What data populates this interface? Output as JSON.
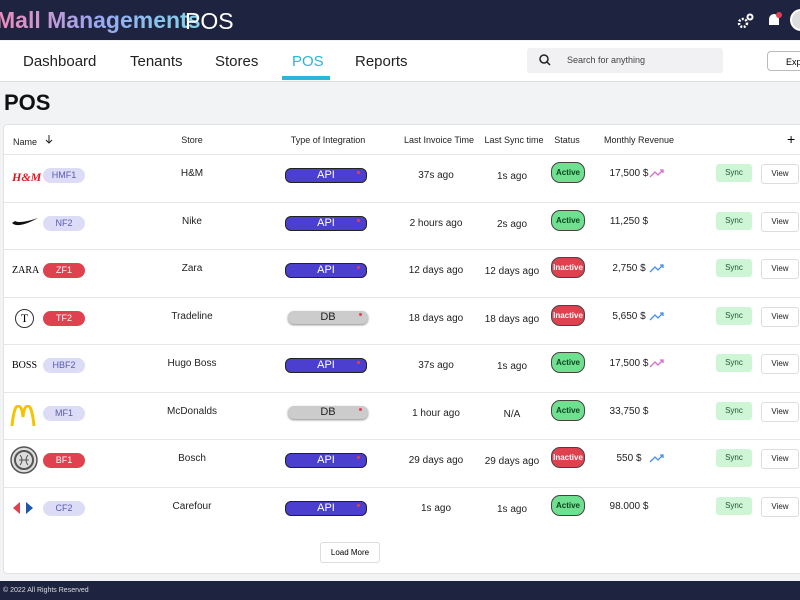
{
  "header": {
    "brand": "Mall Managements",
    "section": "POS"
  },
  "nav": {
    "tabs": [
      "Dashboard",
      "Tenants",
      "Stores",
      "POS",
      "Reports"
    ],
    "active": 3,
    "search_placeholder": "Search for anything",
    "export": "Exp"
  },
  "page_title": "POS",
  "table": {
    "columns": [
      "Name",
      "Store",
      "Type of Integration",
      "Last Invoice Time",
      "Last Sync time",
      "Status",
      "Monthly Revenue"
    ],
    "add": "+",
    "sync": "Sync",
    "view": "View",
    "rows": [
      {
        "logo": "H&M",
        "code": "HMF1",
        "store": "H&M",
        "integration": "API",
        "last_invoice": "37s ago",
        "last_sync": "1s ago",
        "status": "Active",
        "active": true,
        "revenue": "17,500 $",
        "trend_color": "#d66bd0"
      },
      {
        "code": "NF2",
        "store": "Nike",
        "integration": "API",
        "last_invoice": "2 hours ago",
        "last_sync": "2s ago",
        "status": "Active",
        "active": true,
        "revenue": "11,250 $"
      },
      {
        "logo": "ZARA",
        "code": "ZF1",
        "store": "Zara",
        "integration": "API",
        "last_invoice": "12 days ago",
        "last_sync": "12 days ago",
        "status": "Inactive",
        "active": false,
        "revenue": "2,750 $",
        "trend_color": "#4a8fe0"
      },
      {
        "logo": "T",
        "code": "TF2",
        "store": "Tradeline",
        "integration": "DB",
        "last_invoice": "18 days ago",
        "last_sync": "18 days ago",
        "status": "Inactive",
        "active": false,
        "revenue": "5,650 $",
        "trend_color": "#4a8fe0"
      },
      {
        "logo": "BOSS",
        "code": "HBF2",
        "store": "Hugo Boss",
        "integration": "API",
        "last_invoice": "37s ago",
        "last_sync": "1s ago",
        "status": "Active",
        "active": true,
        "revenue": "17,500 $",
        "trend_color": "#d66bd0"
      },
      {
        "code": "MF1",
        "store": "McDonalds",
        "integration": "DB",
        "last_invoice": "1 hour ago",
        "last_sync": "N/A",
        "status": "Active",
        "active": true,
        "revenue": "33,750 $"
      },
      {
        "code": "BF1",
        "store": "Bosch",
        "integration": "API",
        "last_invoice": "29 days ago",
        "last_sync": "29 days ago",
        "status": "Inactive",
        "active": false,
        "revenue": "550 $",
        "trend_color": "#4a8fe0"
      },
      {
        "code": "CF2",
        "store": "Carefour",
        "integration": "API",
        "last_invoice": "1s ago",
        "last_sync": "1s ago",
        "status": "Active",
        "active": true,
        "revenue": "98.000 $"
      }
    ],
    "load_more": "Load More"
  },
  "footer": "© 2022 All Rights Reserved"
}
